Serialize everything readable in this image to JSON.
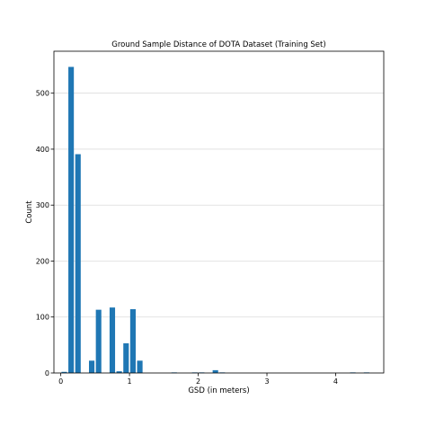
{
  "chart_data": {
    "type": "bar",
    "title": "Ground Sample Distance of DOTA Dataset (Training Set)",
    "xlabel": "GSD (in meters)",
    "ylabel": "Count",
    "xlim": [
      -0.1,
      4.7
    ],
    "ylim": [
      0,
      575
    ],
    "xticks": [
      0,
      1,
      2,
      3,
      4
    ],
    "yticks": [
      0,
      100,
      200,
      300,
      400,
      500
    ],
    "grid": "horizontal",
    "color": "#1f77b4",
    "bar_width": 0.08,
    "x": [
      0.05,
      0.15,
      0.25,
      0.45,
      0.55,
      0.75,
      0.85,
      0.95,
      1.05,
      1.15,
      1.65,
      1.95,
      2.05,
      2.25,
      2.35,
      4.25,
      4.45
    ],
    "values": [
      2,
      547,
      391,
      22,
      113,
      117,
      3,
      53,
      114,
      22,
      1,
      1,
      1,
      5,
      1,
      1,
      1
    ]
  }
}
